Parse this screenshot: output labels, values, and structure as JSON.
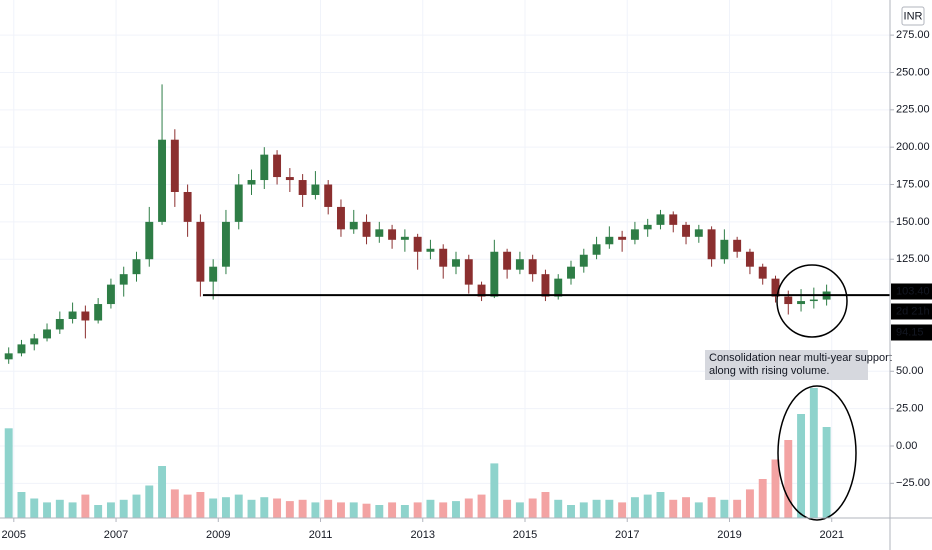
{
  "chart_data": {
    "type": "candlestick",
    "currency": "INR",
    "x": [
      2004.9,
      2005.15,
      2005.4,
      2005.65,
      2005.9,
      2006.15,
      2006.4,
      2006.65,
      2006.9,
      2007.15,
      2007.4,
      2007.65,
      2007.9,
      2008.15,
      2008.4,
      2008.65,
      2008.9,
      2009.15,
      2009.4,
      2009.65,
      2009.9,
      2010.15,
      2010.4,
      2010.65,
      2010.9,
      2011.15,
      2011.4,
      2011.65,
      2011.9,
      2012.15,
      2012.4,
      2012.65,
      2012.9,
      2013.15,
      2013.4,
      2013.65,
      2013.9,
      2014.15,
      2014.4,
      2014.65,
      2014.9,
      2015.15,
      2015.4,
      2015.65,
      2015.9,
      2016.15,
      2016.4,
      2016.65,
      2016.9,
      2017.15,
      2017.4,
      2017.65,
      2017.9,
      2018.15,
      2018.4,
      2018.65,
      2018.9,
      2019.15,
      2019.4,
      2019.65,
      2019.9,
      2020.15,
      2020.4,
      2020.65,
      2020.9
    ],
    "open": [
      58,
      62,
      68,
      72,
      78,
      85,
      90,
      84,
      95,
      108,
      115,
      125,
      150,
      205,
      170,
      150,
      110,
      120,
      150,
      175,
      178,
      195,
      180,
      178,
      168,
      175,
      160,
      145,
      150,
      140,
      145,
      138,
      140,
      130,
      132,
      120,
      125,
      108,
      100,
      130,
      118,
      125,
      115,
      100,
      112,
      120,
      128,
      135,
      140,
      138,
      145,
      148,
      155,
      148,
      140,
      145,
      125,
      138,
      130,
      120,
      112,
      100,
      95,
      97,
      98
    ],
    "high": [
      66,
      71,
      75,
      82,
      90,
      96,
      94,
      99,
      112,
      120,
      130,
      160,
      242,
      212,
      175,
      155,
      125,
      158,
      182,
      185,
      200,
      198,
      186,
      182,
      184,
      178,
      165,
      158,
      155,
      150,
      148,
      145,
      142,
      138,
      135,
      130,
      128,
      110,
      138,
      132,
      130,
      128,
      118,
      115,
      124,
      132,
      140,
      147,
      144,
      150,
      152,
      158,
      157,
      150,
      148,
      147,
      145,
      140,
      132,
      122,
      114,
      104,
      105,
      106,
      108
    ],
    "low": [
      55,
      60,
      64,
      70,
      75,
      82,
      72,
      82,
      92,
      100,
      110,
      120,
      148,
      160,
      140,
      100,
      98,
      115,
      145,
      168,
      172,
      175,
      170,
      160,
      165,
      155,
      140,
      142,
      135,
      136,
      132,
      130,
      118,
      125,
      112,
      115,
      102,
      97,
      99,
      112,
      115,
      110,
      97,
      98,
      108,
      116,
      125,
      132,
      130,
      135,
      140,
      145,
      143,
      135,
      136,
      120,
      122,
      126,
      115,
      108,
      96,
      88,
      90,
      92,
      94
    ],
    "close": [
      62,
      68,
      72,
      78,
      85,
      90,
      84,
      95,
      108,
      115,
      125,
      150,
      205,
      170,
      150,
      110,
      120,
      150,
      175,
      178,
      195,
      180,
      178,
      168,
      175,
      160,
      145,
      150,
      140,
      145,
      138,
      140,
      130,
      132,
      120,
      125,
      108,
      100,
      130,
      118,
      125,
      115,
      100,
      112,
      120,
      128,
      135,
      140,
      138,
      145,
      148,
      155,
      148,
      140,
      145,
      125,
      138,
      130,
      120,
      112,
      100,
      95,
      97,
      98,
      103.4
    ],
    "volume": [
      69,
      20,
      15,
      12,
      14,
      12,
      18,
      10,
      12,
      14,
      18,
      25,
      40,
      22,
      18,
      20,
      15,
      16,
      18,
      14,
      16,
      15,
      13,
      14,
      12,
      14,
      12,
      12,
      11,
      10,
      12,
      10,
      12,
      14,
      12,
      13,
      15,
      18,
      42,
      14,
      12,
      15,
      20,
      14,
      10,
      12,
      14,
      14,
      12,
      16,
      18,
      20,
      14,
      16,
      12,
      16,
      14,
      14,
      22,
      30,
      45,
      60,
      80,
      100,
      70
    ],
    "up_color": "#2e7d46",
    "down_color": "#8b2f2f",
    "volume_up_color": "#8ed3cc",
    "volume_down_color": "#f3a3a3",
    "xlim": [
      2004.73,
      2022.14
    ],
    "xticks": [
      2005,
      2007,
      2009,
      2011,
      2013,
      2015,
      2017,
      2019,
      2021
    ],
    "ylim": [
      -48.2,
      298.5
    ],
    "yticks": [
      {
        "value": -25,
        "label": "−25.00"
      },
      {
        "value": 0,
        "label": "0.00"
      },
      {
        "value": 25,
        "label": "25.00"
      },
      {
        "value": 50,
        "label": "50.00"
      },
      {
        "value": 125,
        "label": "125.00"
      },
      {
        "value": 150,
        "label": "150.00"
      },
      {
        "value": 175,
        "label": "175.00"
      },
      {
        "value": 200,
        "label": "200.00"
      },
      {
        "value": 225,
        "label": "225.00"
      },
      {
        "value": 250,
        "label": "250.00"
      },
      {
        "value": 275,
        "label": "275.00"
      }
    ],
    "grid": true,
    "support_line": {
      "value": 101,
      "x_start": 2008.7
    },
    "last_price": {
      "value": 103.4,
      "label": "103.40"
    },
    "countdown": "2d 21h",
    "low_price": {
      "value": 94.15,
      "label": "94.15"
    },
    "annotation": [
      "Consolidation near multi-year support",
      "along with rising volume."
    ]
  }
}
